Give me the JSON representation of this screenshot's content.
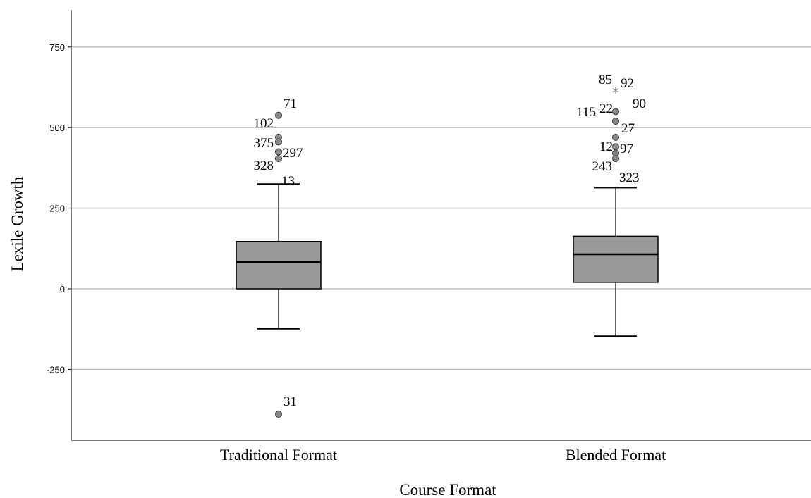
{
  "chart_data": {
    "type": "boxplot",
    "xlabel": "Course Format",
    "ylabel": "Lexile Growth",
    "ylim": [
      -465,
      870
    ],
    "yticks": [
      -250,
      0,
      250,
      500,
      750
    ],
    "ytick_labels": [
      "-250",
      "0",
      "250",
      "500",
      "750"
    ],
    "grid": "horizontal",
    "categories": [
      "Traditional Format",
      "Blended Format"
    ],
    "boxes": [
      {
        "category": "Traditional Format",
        "whisker_low": -124,
        "q1": 0,
        "median": 83,
        "q3": 147,
        "whisker_high": 325,
        "outliers": [
          {
            "value": 538,
            "label": "71",
            "marker": "circle"
          },
          {
            "value": 470,
            "label": "102",
            "marker": "circle"
          },
          {
            "value": 456,
            "label": "375",
            "marker": "circle"
          },
          {
            "value": 425,
            "label": "297",
            "marker": "circle"
          },
          {
            "value": 404,
            "label": "328",
            "marker": "circle"
          },
          {
            "value": -389,
            "label": "31",
            "marker": "circle"
          }
        ],
        "extra_labels": [
          {
            "value": 325,
            "label": "13"
          }
        ]
      },
      {
        "category": "Blended Format",
        "whisker_low": -147,
        "q1": 20,
        "median": 107,
        "q3": 163,
        "whisker_high": 314,
        "outliers": [
          {
            "value": 608,
            "label": "92",
            "marker": "star"
          },
          {
            "value": 550,
            "label": "22",
            "marker": "circle"
          },
          {
            "value": 520,
            "label": "90",
            "marker": "circle"
          },
          {
            "value": 470,
            "label": "27",
            "marker": "circle"
          },
          {
            "value": 441,
            "label": "97",
            "marker": "circle"
          },
          {
            "value": 421,
            "label": "12",
            "marker": "circle"
          },
          {
            "value": 404,
            "label": "243",
            "marker": "circle"
          }
        ],
        "extra_labels": [
          {
            "value": 648,
            "label": "85"
          },
          {
            "value": 558,
            "label": "115"
          },
          {
            "value": 347,
            "label": "323"
          }
        ]
      }
    ],
    "colors": {
      "box_fill": "#999999",
      "outlier_fill": "#888888",
      "star": "#888888",
      "grid": "#c0c0c0",
      "axis": "#000000"
    }
  }
}
